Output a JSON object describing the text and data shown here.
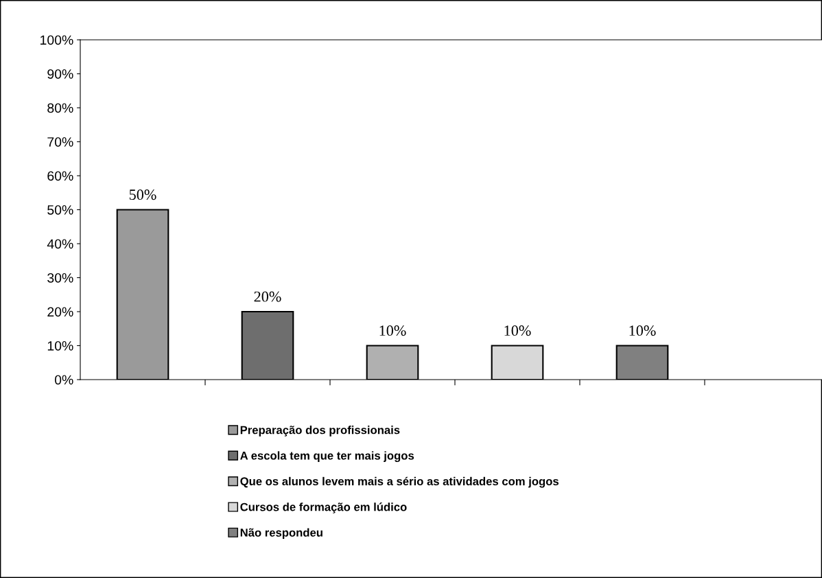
{
  "chart_data": {
    "type": "bar",
    "categories": [
      null,
      null,
      null,
      null,
      null,
      null
    ],
    "series": [
      {
        "name": "Preparação dos profissionais",
        "color": "#9a9a9a",
        "values": [
          50,
          null,
          null,
          null,
          null,
          null
        ]
      },
      {
        "name": "A escola tem que ter mais jogos",
        "color": "#6e6e6e",
        "values": [
          null,
          20,
          null,
          null,
          null,
          null
        ]
      },
      {
        "name": "Que os alunos levem mais a sério as atividades com jogos",
        "color": "#b0b0b0",
        "values": [
          null,
          null,
          10,
          null,
          null,
          null
        ]
      },
      {
        "name": "Cursos de formação em lúdico",
        "color": "#d8d8d8",
        "values": [
          null,
          null,
          null,
          10,
          null,
          null
        ]
      },
      {
        "name": "Não respondeu",
        "color": "#808080",
        "values": [
          null,
          null,
          null,
          null,
          10,
          null
        ]
      }
    ],
    "ylim": [
      0,
      100
    ],
    "yticks": [
      {
        "value": 0,
        "label": "0%"
      },
      {
        "value": 10,
        "label": "10%"
      },
      {
        "value": 20,
        "label": "20%"
      },
      {
        "value": 30,
        "label": "30%"
      },
      {
        "value": 40,
        "label": "40%"
      },
      {
        "value": 50,
        "label": "50%"
      },
      {
        "value": 60,
        "label": "60%"
      },
      {
        "value": 70,
        "label": "70%"
      },
      {
        "value": 80,
        "label": "80%"
      },
      {
        "value": 90,
        "label": "90%"
      },
      {
        "value": 100,
        "label": "100%"
      }
    ],
    "value_labels": [
      "50%",
      "20%",
      "10%",
      "10%",
      "10%",
      null
    ],
    "legend": "bottom",
    "grid": false
  }
}
